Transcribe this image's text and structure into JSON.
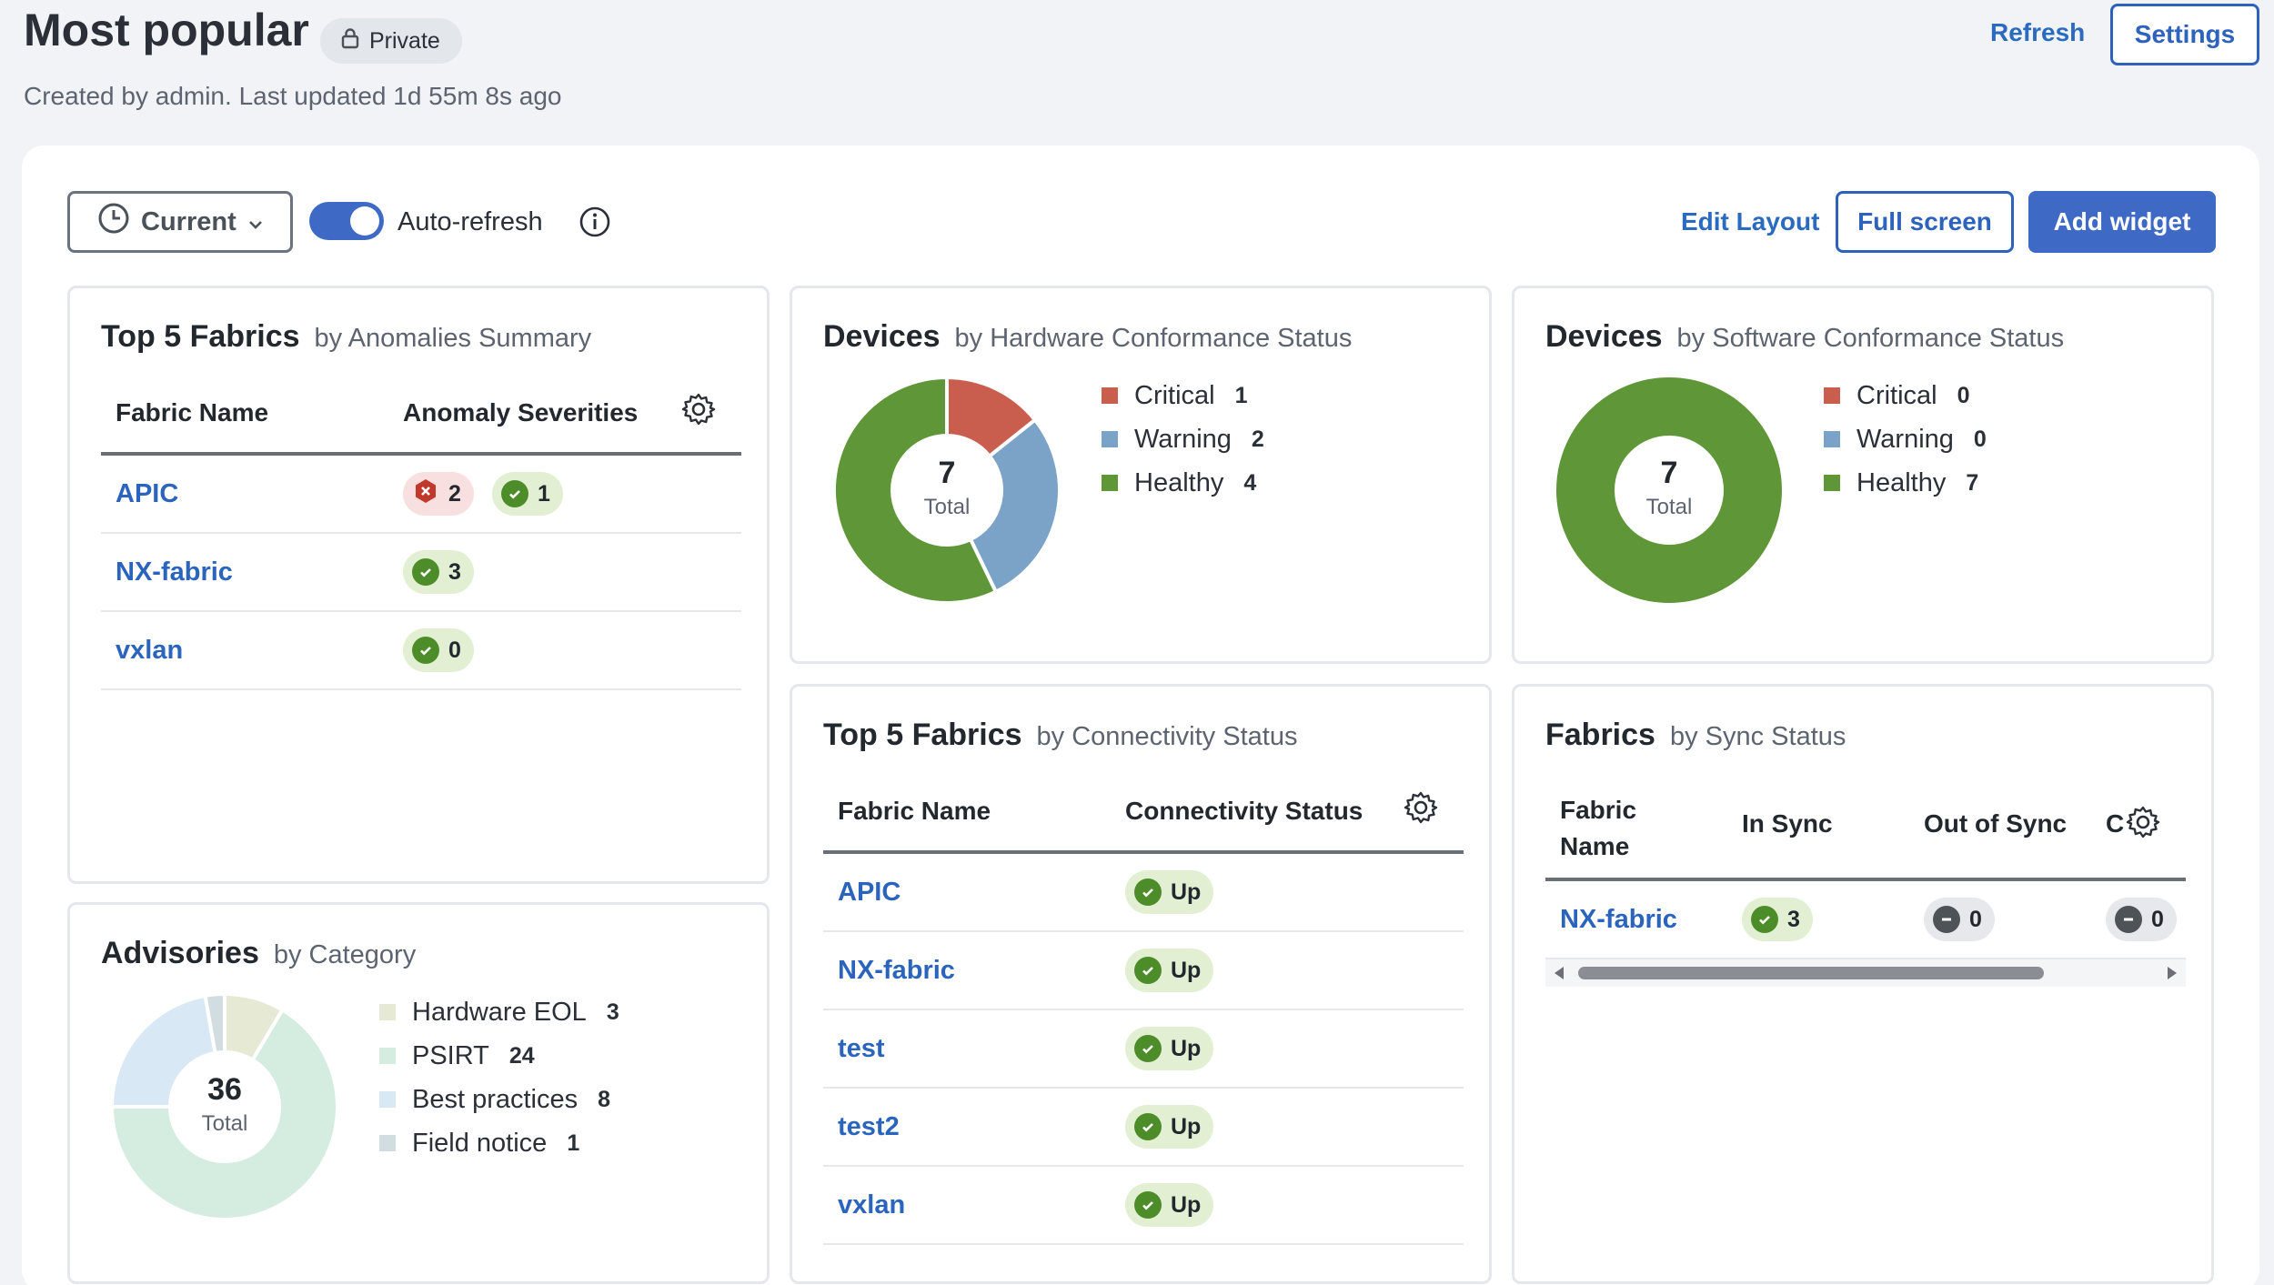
{
  "header": {
    "title": "Most popular",
    "private_label": "Private",
    "subtitle": "Created by admin. Last updated 1d 55m 8s ago",
    "refresh_label": "Refresh",
    "settings_label": "Settings"
  },
  "toolbar": {
    "time_select": "Current",
    "auto_refresh_label": "Auto-refresh",
    "auto_refresh_on": true,
    "edit_layout_label": "Edit Layout",
    "full_screen_label": "Full screen",
    "add_widget_label": "Add widget"
  },
  "colors": {
    "accent": "#3e6ac6",
    "critical": "#c95e4e",
    "warning": "#7aa3c7",
    "healthy": "#5f9637"
  },
  "anomalies_widget": {
    "title": "Top 5 Fabrics",
    "subtitle": "by Anomalies Summary",
    "col_fabric": "Fabric Name",
    "col_severity": "Anomaly Severities",
    "rows": [
      {
        "name": "APIC",
        "critical": "2",
        "healthy": "1"
      },
      {
        "name": "NX-fabric",
        "healthy": "3"
      },
      {
        "name": "vxlan",
        "healthy": "0"
      }
    ]
  },
  "hw_widget": {
    "title": "Devices",
    "subtitle": "by Hardware Conformance Status",
    "total": "7",
    "total_label": "Total",
    "legend": [
      {
        "label": "Critical",
        "count": "1"
      },
      {
        "label": "Warning",
        "count": "2"
      },
      {
        "label": "Healthy",
        "count": "4"
      }
    ]
  },
  "sw_widget": {
    "title": "Devices",
    "subtitle": "by Software Conformance Status",
    "total": "7",
    "total_label": "Total",
    "legend": [
      {
        "label": "Critical",
        "count": "0"
      },
      {
        "label": "Warning",
        "count": "0"
      },
      {
        "label": "Healthy",
        "count": "7"
      }
    ]
  },
  "advisories_widget": {
    "title": "Advisories",
    "subtitle": "by Category",
    "total": "36",
    "total_label": "Total",
    "legend": [
      {
        "label": "Hardware EOL",
        "count": "3"
      },
      {
        "label": "PSIRT",
        "count": "24"
      },
      {
        "label": "Best practices",
        "count": "8"
      },
      {
        "label": "Field notice",
        "count": "1"
      }
    ]
  },
  "connectivity_widget": {
    "title": "Top 5 Fabrics",
    "subtitle": "by Connectivity Status",
    "col_fabric": "Fabric Name",
    "col_status": "Connectivity Status",
    "rows": [
      {
        "name": "APIC",
        "status": "Up"
      },
      {
        "name": "NX-fabric",
        "status": "Up"
      },
      {
        "name": "test",
        "status": "Up"
      },
      {
        "name": "test2",
        "status": "Up"
      },
      {
        "name": "vxlan",
        "status": "Up"
      }
    ]
  },
  "sync_widget": {
    "title": "Fabrics",
    "subtitle": "by Sync Status",
    "col_fabric_1": "Fabric",
    "col_fabric_2": "Name",
    "col_in_sync": "In Sync",
    "col_out_of_sync": "Out of Sync",
    "col_truncated": "C",
    "rows": [
      {
        "name": "NX-fabric",
        "in_sync": "3",
        "out_of_sync": "0",
        "other": "0"
      }
    ]
  }
}
